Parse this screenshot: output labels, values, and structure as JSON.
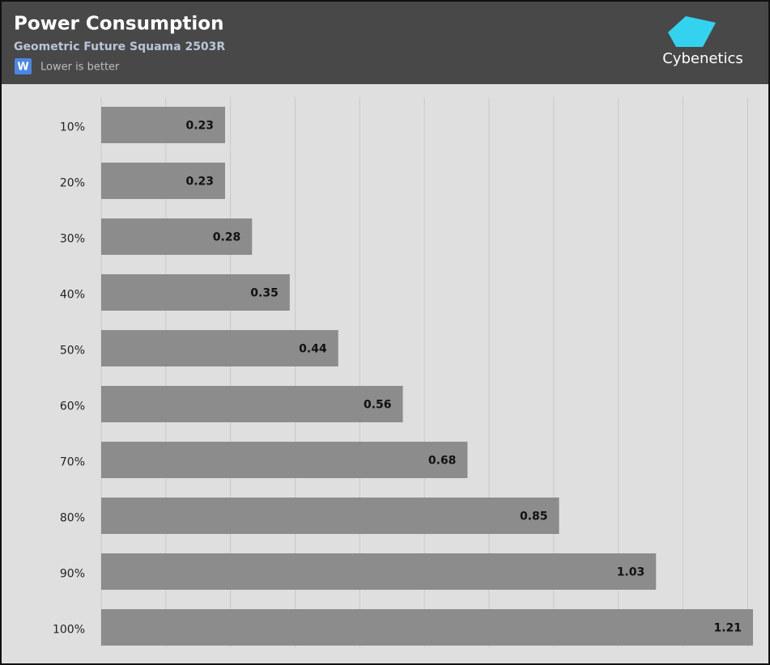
{
  "chart_data": {
    "type": "bar",
    "orientation": "horizontal",
    "title": "Power Consumption",
    "subtitle": "Geometric Future Squama 2503R",
    "unit": "W",
    "note": "Lower is better",
    "logo": "Cybenetics",
    "categories": [
      "10%",
      "20%",
      "30%",
      "40%",
      "50%",
      "60%",
      "70%",
      "80%",
      "90%",
      "100%"
    ],
    "values": [
      0.23,
      0.23,
      0.28,
      0.35,
      0.44,
      0.56,
      0.68,
      0.85,
      1.03,
      1.21
    ],
    "color": "#8c8c8c",
    "xlim": [
      0,
      1.21
    ],
    "xticks": [
      0,
      0.12,
      0.24,
      0.36,
      0.48,
      0.6,
      0.72,
      0.84,
      0.96,
      1.08,
      1.2
    ],
    "grid": true
  }
}
